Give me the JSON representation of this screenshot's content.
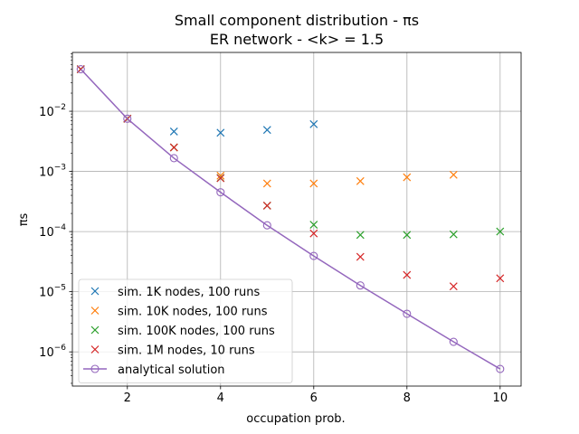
{
  "chart_data": {
    "type": "scatter",
    "title": "Small component distribution - πs",
    "subtitle": "ER network - <k> = 1.5",
    "xlabel": "occupation prob.",
    "ylabel": "πs",
    "xlim": [
      0.82,
      10.45
    ],
    "ylim": [
      2.7e-07,
      0.095
    ],
    "y_scale": "log",
    "grid": true,
    "legend_position": "lower-left",
    "x_ticks": [
      {
        "value": 2,
        "label": "2"
      },
      {
        "value": 4,
        "label": "4"
      },
      {
        "value": 6,
        "label": "6"
      },
      {
        "value": 8,
        "label": "8"
      },
      {
        "value": 10,
        "label": "10"
      }
    ],
    "y_ticks": [
      {
        "value": 1e-06,
        "base": "10",
        "exp": "−6"
      },
      {
        "value": 1e-05,
        "base": "10",
        "exp": "−5"
      },
      {
        "value": 0.0001,
        "base": "10",
        "exp": "−4"
      },
      {
        "value": 0.001,
        "base": "10",
        "exp": "−3"
      },
      {
        "value": 0.01,
        "base": "10",
        "exp": "−2"
      }
    ],
    "series": [
      {
        "name": "sim. 1K nodes, 100 runs",
        "color": "#1f77b4",
        "marker": "x",
        "x": [
          1,
          2,
          3,
          4,
          5,
          6
        ],
        "y": [
          0.05,
          0.0075,
          0.0046,
          0.0044,
          0.0049,
          0.0061
        ]
      },
      {
        "name": "sim. 10K nodes, 100 runs",
        "color": "#ff7f0e",
        "marker": "x",
        "x": [
          1,
          2,
          3,
          4,
          5,
          6,
          7,
          8,
          9
        ],
        "y": [
          0.05,
          0.0075,
          0.0025,
          0.00085,
          0.00063,
          0.00063,
          0.00069,
          0.0008,
          0.00088
        ]
      },
      {
        "name": "sim. 100K nodes, 100 runs",
        "color": "#2ca02c",
        "marker": "x",
        "x": [
          1,
          2,
          3,
          4,
          5,
          6,
          7,
          8,
          9,
          10
        ],
        "y": [
          0.05,
          0.0075,
          0.0025,
          0.00078,
          0.00027,
          0.00013,
          8.8e-05,
          8.8e-05,
          9e-05,
          0.0001
        ]
      },
      {
        "name": "sim. 1M nodes, 10 runs",
        "color": "#d62728",
        "marker": "x",
        "x": [
          1,
          2,
          3,
          4,
          5,
          6,
          7,
          8,
          9,
          10
        ],
        "y": [
          0.05,
          0.0075,
          0.0025,
          0.00077,
          0.00027,
          9.3e-05,
          3.8e-05,
          1.9e-05,
          1.23e-05,
          1.67e-05
        ]
      },
      {
        "name": "analytical solution",
        "color": "#9467bd",
        "marker": "o-line",
        "x": [
          1,
          2,
          3,
          4,
          5,
          6,
          7,
          8,
          9,
          10
        ],
        "y": [
          0.05,
          0.0075,
          0.00166,
          0.00045,
          0.000127,
          3.93e-05,
          1.27e-05,
          4.3e-06,
          1.47e-06,
          5.2e-07
        ]
      }
    ]
  }
}
